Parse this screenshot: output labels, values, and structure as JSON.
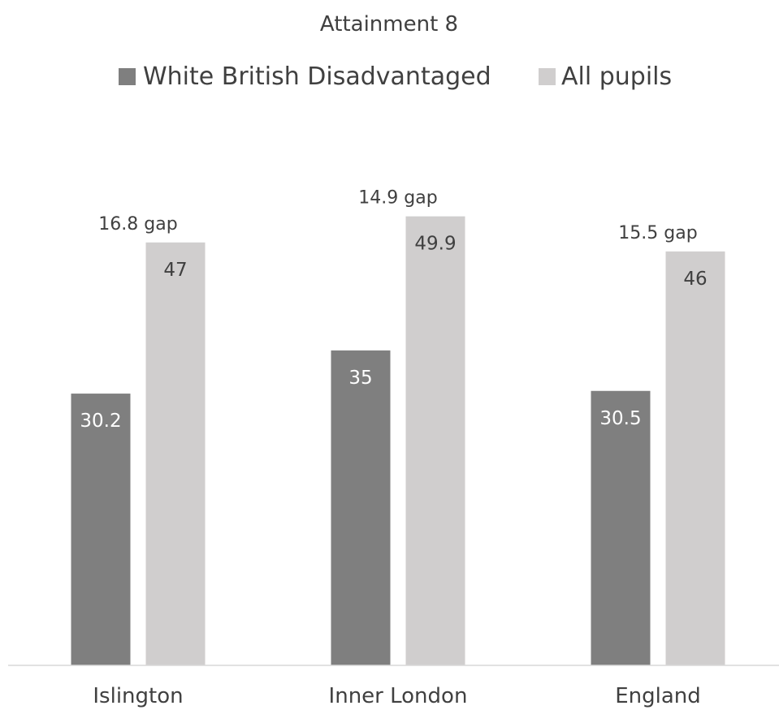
{
  "chart_data": {
    "type": "bar",
    "title": "Attainment 8",
    "xlabel": "",
    "ylabel": "",
    "categories": [
      "Islington",
      "Inner London",
      "England"
    ],
    "series": [
      {
        "name": "White British Disadvantaged",
        "values": [
          30.2,
          35,
          30.5
        ],
        "data_labels": [
          "30.2",
          "35",
          "30.5"
        ],
        "color": "#7f7f7f"
      },
      {
        "name": "All pupils",
        "values": [
          47,
          49.9,
          46
        ],
        "data_labels": [
          "47",
          "49.9",
          "46"
        ],
        "color": "#d0cece"
      }
    ],
    "annotations": [
      "16.8 gap",
      "14.9 gap",
      "15.5 gap"
    ],
    "ylim": [
      0,
      62
    ],
    "grid": false,
    "legend": "top",
    "axis_color": "#d9d9d9",
    "text_color": "#404040"
  }
}
